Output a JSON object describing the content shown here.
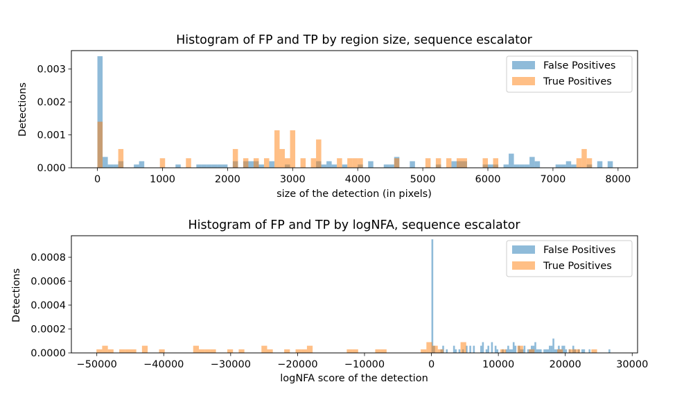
{
  "chart_data": [
    {
      "type": "histogram",
      "title": "Histogram of FP and TP by region size, sequence escalator",
      "xlabel": "size of the detection (in pixels)",
      "ylabel": "Detections",
      "xlim": [
        -400,
        8300
      ],
      "ylim": [
        0,
        0.00356
      ],
      "xticks": [
        0,
        1000,
        2000,
        3000,
        4000,
        5000,
        6000,
        7000,
        8000
      ],
      "yticks": [
        0,
        0.001,
        0.002,
        0.003
      ],
      "ytick_labels": [
        "0.000",
        "0.001",
        "0.002",
        "0.003"
      ],
      "legend_position": "upper right",
      "series": [
        {
          "name": "False Positives",
          "color": "#1f77b4",
          "alpha": 0.5,
          "bin_width": 80,
          "bins": [
            [
              0,
              0.00339
            ],
            [
              80,
              0.00033
            ],
            [
              160,
              0.0001
            ],
            [
              240,
              0.0001
            ],
            [
              320,
              0.0002
            ],
            [
              560,
              0.0001
            ],
            [
              640,
              0.0002
            ],
            [
              1200,
              0.0001
            ],
            [
              1520,
              0.0001
            ],
            [
              1600,
              0.0001
            ],
            [
              1680,
              0.0001
            ],
            [
              1760,
              0.0001
            ],
            [
              1840,
              0.0001
            ],
            [
              1920,
              0.0001
            ],
            [
              2080,
              0.0002
            ],
            [
              2240,
              0.0002
            ],
            [
              2320,
              0.0002
            ],
            [
              2400,
              0.0002
            ],
            [
              2480,
              0.0001
            ],
            [
              2640,
              0.0002
            ],
            [
              2880,
              0.0001
            ],
            [
              3360,
              0.0002
            ],
            [
              3440,
              0.0001
            ],
            [
              3520,
              0.0002
            ],
            [
              3600,
              0.0001
            ],
            [
              3760,
              0.0001
            ],
            [
              4000,
              0.0001
            ],
            [
              4160,
              0.0002
            ],
            [
              4400,
              0.0001
            ],
            [
              4480,
              0.0001
            ],
            [
              4560,
              0.00033
            ],
            [
              4800,
              0.0002
            ],
            [
              5200,
              0.0001
            ],
            [
              5440,
              0.0002
            ],
            [
              5520,
              0.0002
            ],
            [
              5600,
              0.0002
            ],
            [
              5920,
              0.0001
            ],
            [
              6000,
              0.0001
            ],
            [
              6080,
              0.0001
            ],
            [
              6240,
              0.0001
            ],
            [
              6320,
              0.00043
            ],
            [
              6400,
              0.0001
            ],
            [
              6480,
              0.0001
            ],
            [
              6560,
              0.0001
            ],
            [
              6640,
              0.00033
            ],
            [
              6720,
              0.0002
            ],
            [
              7040,
              0.0001
            ],
            [
              7120,
              0.0001
            ],
            [
              7200,
              0.0002
            ],
            [
              7280,
              0.0001
            ],
            [
              7520,
              0.0001
            ],
            [
              7680,
              0.0002
            ],
            [
              7840,
              0.0002
            ]
          ]
        },
        {
          "name": "True Positives",
          "color": "#ff7f0e",
          "alpha": 0.5,
          "bin_width": 80,
          "bins": [
            [
              0,
              0.0014
            ],
            [
              320,
              0.00057
            ],
            [
              960,
              0.00029
            ],
            [
              1360,
              0.00029
            ],
            [
              2080,
              0.00057
            ],
            [
              2240,
              0.00029
            ],
            [
              2400,
              0.00029
            ],
            [
              2560,
              0.00029
            ],
            [
              2720,
              0.00114
            ],
            [
              2800,
              0.00057
            ],
            [
              2880,
              0.00029
            ],
            [
              2960,
              0.00114
            ],
            [
              3120,
              0.00029
            ],
            [
              3280,
              0.00029
            ],
            [
              3360,
              0.00086
            ],
            [
              3680,
              0.00029
            ],
            [
              3840,
              0.00029
            ],
            [
              3920,
              0.00029
            ],
            [
              4000,
              0.00029
            ],
            [
              4560,
              0.00029
            ],
            [
              5040,
              0.00029
            ],
            [
              5200,
              0.00029
            ],
            [
              5360,
              0.00029
            ],
            [
              5520,
              0.00029
            ],
            [
              5600,
              0.00029
            ],
            [
              5920,
              0.00029
            ],
            [
              6080,
              0.00029
            ],
            [
              7360,
              0.00029
            ],
            [
              7440,
              0.00057
            ],
            [
              7520,
              0.00029
            ]
          ]
        }
      ]
    },
    {
      "type": "histogram",
      "title": "Histogram of FP and TP by logNFA, sequence escalator",
      "xlabel": "logNFA score of the detection",
      "ylabel": "Detections",
      "xlim": [
        -53800,
        30800
      ],
      "ylim": [
        0,
        0.00098
      ],
      "xticks": [
        -50000,
        -40000,
        -30000,
        -20000,
        -10000,
        0,
        10000,
        20000,
        30000
      ],
      "yticks": [
        0,
        0.0002,
        0.0004,
        0.0006,
        0.0008
      ],
      "ytick_labels": [
        "0.0000",
        "0.0002",
        "0.0004",
        "0.0006",
        "0.0008"
      ],
      "legend_position": "upper right",
      "series": [
        {
          "name": "False Positives",
          "color": "#1f77b4",
          "alpha": 0.5,
          "bin_width": 270,
          "bins": [
            [
              0,
              0.00095
            ],
            [
              270,
              6e-05
            ],
            [
              1350,
              3e-05
            ],
            [
              1620,
              6e-05
            ],
            [
              2160,
              3e-05
            ],
            [
              3240,
              6e-05
            ],
            [
              3510,
              3e-05
            ],
            [
              4050,
              3e-05
            ],
            [
              4590,
              3e-05
            ],
            [
              5130,
              6e-05
            ],
            [
              5670,
              6e-05
            ],
            [
              6210,
              6e-05
            ],
            [
              7290,
              6e-05
            ],
            [
              7560,
              9e-05
            ],
            [
              8100,
              3e-05
            ],
            [
              8370,
              6e-05
            ],
            [
              8910,
              9e-05
            ],
            [
              9450,
              6e-05
            ],
            [
              9720,
              3e-05
            ],
            [
              10530,
              3e-05
            ],
            [
              11070,
              3e-05
            ],
            [
              11340,
              6e-05
            ],
            [
              11610,
              3e-05
            ],
            [
              11880,
              3e-05
            ],
            [
              12150,
              9e-05
            ],
            [
              12420,
              6e-05
            ],
            [
              12960,
              6e-05
            ],
            [
              13230,
              3e-05
            ],
            [
              13500,
              3e-05
            ],
            [
              13770,
              6e-05
            ],
            [
              14310,
              3e-05
            ],
            [
              14580,
              3e-05
            ],
            [
              14850,
              6e-05
            ],
            [
              15120,
              6e-05
            ],
            [
              15390,
              9e-05
            ],
            [
              15660,
              3e-05
            ],
            [
              15930,
              3e-05
            ],
            [
              16200,
              3e-05
            ],
            [
              16740,
              3e-05
            ],
            [
              17010,
              3e-05
            ],
            [
              17280,
              3e-05
            ],
            [
              17550,
              6e-05
            ],
            [
              17820,
              6e-05
            ],
            [
              18090,
              0.00012
            ],
            [
              18360,
              3e-05
            ],
            [
              18630,
              3e-05
            ],
            [
              18900,
              6e-05
            ],
            [
              19170,
              3e-05
            ],
            [
              19440,
              6e-05
            ],
            [
              19710,
              6e-05
            ],
            [
              19980,
              3e-05
            ],
            [
              20520,
              3e-05
            ],
            [
              21060,
              6e-05
            ],
            [
              21330,
              3e-05
            ],
            [
              21870,
              3e-05
            ],
            [
              22410,
              3e-05
            ],
            [
              22680,
              3e-05
            ],
            [
              23490,
              3e-05
            ],
            [
              26460,
              3e-05
            ]
          ]
        },
        {
          "name": "True Positives",
          "color": "#ff7f0e",
          "alpha": 0.5,
          "bin_width": 850,
          "bins": [
            [
              -50050,
              3e-05
            ],
            [
              -49200,
              6e-05
            ],
            [
              -48350,
              3e-05
            ],
            [
              -46650,
              3e-05
            ],
            [
              -45800,
              3e-05
            ],
            [
              -44950,
              3e-05
            ],
            [
              -43250,
              6e-05
            ],
            [
              -40700,
              3e-05
            ],
            [
              -35600,
              6e-05
            ],
            [
              -34750,
              3e-05
            ],
            [
              -33900,
              3e-05
            ],
            [
              -33050,
              3e-05
            ],
            [
              -30500,
              3e-05
            ],
            [
              -28800,
              3e-05
            ],
            [
              -25400,
              6e-05
            ],
            [
              -24550,
              3e-05
            ],
            [
              -22000,
              3e-05
            ],
            [
              -20300,
              3e-05
            ],
            [
              -19450,
              3e-05
            ],
            [
              -18600,
              6e-05
            ],
            [
              -12650,
              3e-05
            ],
            [
              -11800,
              3e-05
            ],
            [
              -8400,
              3e-05
            ],
            [
              -7550,
              3e-05
            ],
            [
              -1600,
              3e-05
            ],
            [
              -750,
              9e-05
            ],
            [
              100,
              6e-05
            ],
            [
              950,
              3e-05
            ],
            [
              4350,
              9e-05
            ],
            [
              10300,
              3e-05
            ],
            [
              12850,
              6e-05
            ],
            [
              14550,
              3e-05
            ],
            [
              18800,
              3e-05
            ],
            [
              20500,
              3e-05
            ],
            [
              21350,
              3e-05
            ],
            [
              23900,
              3e-05
            ]
          ]
        }
      ]
    }
  ]
}
